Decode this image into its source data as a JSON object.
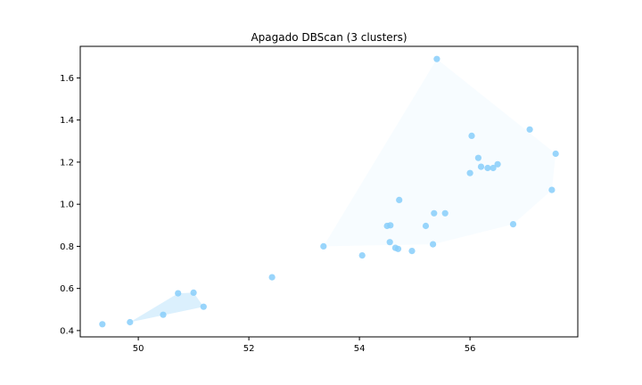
{
  "chart_data": {
    "type": "scatter",
    "title": "Apagado DBScan (3 clusters)",
    "xlabel": "",
    "ylabel": "",
    "xlim": [
      48.95,
      57.95
    ],
    "ylim": [
      0.37,
      1.75
    ],
    "xticks": [
      50,
      52,
      54,
      56
    ],
    "xtick_labels": [
      "50",
      "52",
      "54",
      "56"
    ],
    "yticks": [
      0.4,
      0.6,
      0.8,
      1.0,
      1.2,
      1.4,
      1.6
    ],
    "ytick_labels": [
      "0.4",
      "0.6",
      "0.8",
      "1.0",
      "1.2",
      "1.4",
      "1.6"
    ],
    "grid": false,
    "legend": false,
    "point_color": "#87CEFA",
    "hull_color": "#87CEFA",
    "points": [
      {
        "x": 49.35,
        "y": 0.43
      },
      {
        "x": 49.85,
        "y": 0.44
      },
      {
        "x": 50.45,
        "y": 0.475
      },
      {
        "x": 50.72,
        "y": 0.577
      },
      {
        "x": 51.0,
        "y": 0.58
      },
      {
        "x": 51.18,
        "y": 0.513
      },
      {
        "x": 52.42,
        "y": 0.653
      },
      {
        "x": 53.35,
        "y": 0.8
      },
      {
        "x": 54.05,
        "y": 0.757
      },
      {
        "x": 54.5,
        "y": 0.897
      },
      {
        "x": 54.56,
        "y": 0.9
      },
      {
        "x": 54.55,
        "y": 0.82
      },
      {
        "x": 54.65,
        "y": 0.793
      },
      {
        "x": 54.7,
        "y": 0.788
      },
      {
        "x": 54.72,
        "y": 1.02
      },
      {
        "x": 54.95,
        "y": 0.778
      },
      {
        "x": 55.2,
        "y": 0.897
      },
      {
        "x": 55.33,
        "y": 0.81
      },
      {
        "x": 55.35,
        "y": 0.957
      },
      {
        "x": 55.4,
        "y": 1.69
      },
      {
        "x": 55.55,
        "y": 0.957
      },
      {
        "x": 56.0,
        "y": 1.148
      },
      {
        "x": 56.03,
        "y": 1.325
      },
      {
        "x": 56.15,
        "y": 1.22
      },
      {
        "x": 56.2,
        "y": 1.178
      },
      {
        "x": 56.32,
        "y": 1.172
      },
      {
        "x": 56.42,
        "y": 1.172
      },
      {
        "x": 56.5,
        "y": 1.19
      },
      {
        "x": 56.78,
        "y": 0.905
      },
      {
        "x": 57.08,
        "y": 1.355
      },
      {
        "x": 57.48,
        "y": 1.068
      },
      {
        "x": 57.55,
        "y": 1.24
      }
    ],
    "hulls": [
      {
        "points": [
          [
            49.85,
            0.44
          ],
          [
            51.18,
            0.513
          ],
          [
            51.0,
            0.58
          ],
          [
            50.72,
            0.577
          ]
        ]
      },
      {
        "points": [
          [
            53.35,
            0.8
          ],
          [
            55.4,
            1.69
          ],
          [
            57.55,
            1.24
          ],
          [
            57.48,
            1.068
          ],
          [
            56.78,
            0.905
          ],
          [
            55.33,
            0.81
          ]
        ]
      }
    ]
  }
}
